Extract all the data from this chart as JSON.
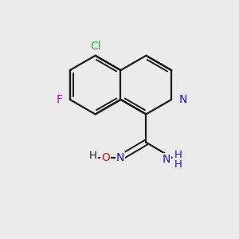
{
  "background_color": "#ebebeb",
  "bond_color": "#1a1a1a",
  "atom_colors": {
    "C": "#1a1a1a",
    "N": "#1414cc",
    "O": "#cc1414",
    "F": "#bb00bb",
    "Cl": "#22bb22",
    "H": "#1a1a1a"
  },
  "figsize": [
    3.0,
    3.0
  ],
  "dpi": 100,
  "bond_lw": 1.6,
  "inner_lw": 1.4,
  "font_size": 9.5
}
